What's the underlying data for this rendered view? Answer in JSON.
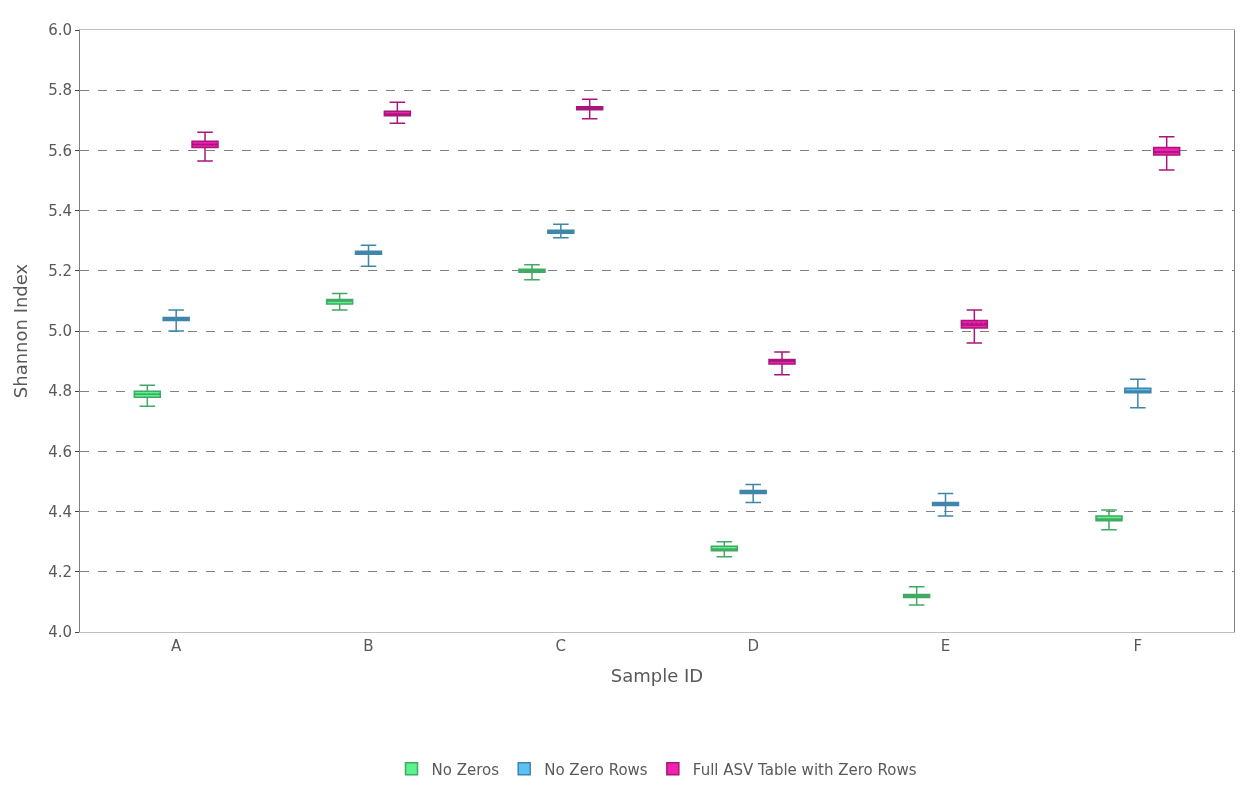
{
  "chart_data": {
    "type": "box",
    "xlabel": "Sample ID",
    "ylabel": "Shannon Index",
    "categories": [
      "A",
      "B",
      "C",
      "D",
      "E",
      "F"
    ],
    "ylim": [
      4.0,
      6.0
    ],
    "yticks": [
      {
        "value": 4.0,
        "label": "4.0"
      },
      {
        "value": 4.2,
        "label": "4.2"
      },
      {
        "value": 4.4,
        "label": "4.4"
      },
      {
        "value": 4.6,
        "label": "4.6"
      },
      {
        "value": 4.8,
        "label": "4.8"
      },
      {
        "value": 5.0,
        "label": "5.0"
      },
      {
        "value": 5.2,
        "label": "5.2"
      },
      {
        "value": 5.4,
        "label": "5.4"
      },
      {
        "value": 5.6,
        "label": "5.6"
      },
      {
        "value": 5.8,
        "label": "5.8"
      },
      {
        "value": 6.0,
        "label": "6.0"
      }
    ],
    "grid": "y",
    "legend": "bottom",
    "series": [
      {
        "name": "No Zeros",
        "color": "#5cf28e",
        "boxes": [
          {
            "low": 4.75,
            "q1": 4.78,
            "median": 4.79,
            "q3": 4.8,
            "high": 4.82,
            "mean": 4.79
          },
          {
            "low": 5.07,
            "q1": 5.09,
            "median": 5.1,
            "q3": 5.105,
            "high": 5.125,
            "mean": 5.1
          },
          {
            "low": 5.17,
            "q1": 5.195,
            "median": 5.2,
            "q3": 5.205,
            "high": 5.22,
            "mean": 5.2
          },
          {
            "low": 4.25,
            "q1": 4.27,
            "median": 4.275,
            "q3": 4.285,
            "high": 4.3,
            "mean": 4.275
          },
          {
            "low": 4.09,
            "q1": 4.115,
            "median": 4.12,
            "q3": 4.125,
            "high": 4.15,
            "mean": 4.12
          },
          {
            "low": 4.34,
            "q1": 4.37,
            "median": 4.375,
            "q3": 4.385,
            "high": 4.405,
            "mean": 4.375
          }
        ]
      },
      {
        "name": "No Zero Rows",
        "color": "#5bc0f5",
        "boxes": [
          {
            "low": 5.0,
            "q1": 5.035,
            "median": 5.04,
            "q3": 5.045,
            "high": 5.07,
            "mean": 5.04
          },
          {
            "low": 5.215,
            "q1": 5.255,
            "median": 5.26,
            "q3": 5.265,
            "high": 5.285,
            "mean": 5.26
          },
          {
            "low": 5.31,
            "q1": 5.325,
            "median": 5.33,
            "q3": 5.335,
            "high": 5.355,
            "mean": 5.33
          },
          {
            "low": 4.43,
            "q1": 4.46,
            "median": 4.465,
            "q3": 4.47,
            "high": 4.49,
            "mean": 4.465
          },
          {
            "low": 4.385,
            "q1": 4.42,
            "median": 4.425,
            "q3": 4.43,
            "high": 4.46,
            "mean": 4.425
          },
          {
            "low": 4.745,
            "q1": 4.795,
            "median": 4.8,
            "q3": 4.81,
            "high": 4.84,
            "mean": 4.8
          }
        ]
      },
      {
        "name": "Full ASV Table with Zero Rows",
        "color": "#f020b0",
        "boxes": [
          {
            "low": 5.565,
            "q1": 5.61,
            "median": 5.62,
            "q3": 5.63,
            "high": 5.66,
            "mean": 5.62
          },
          {
            "low": 5.69,
            "q1": 5.715,
            "median": 5.72,
            "q3": 5.73,
            "high": 5.76,
            "mean": 5.72
          },
          {
            "low": 5.705,
            "q1": 5.735,
            "median": 5.74,
            "q3": 5.745,
            "high": 5.77,
            "mean": 5.74
          },
          {
            "low": 4.855,
            "q1": 4.89,
            "median": 4.9,
            "q3": 4.905,
            "high": 4.93,
            "mean": 4.9
          },
          {
            "low": 4.96,
            "q1": 5.01,
            "median": 5.02,
            "q3": 5.035,
            "high": 5.07,
            "mean": 5.025
          },
          {
            "low": 5.535,
            "q1": 5.585,
            "median": 5.595,
            "q3": 5.61,
            "high": 5.645,
            "mean": 5.595
          }
        ]
      }
    ]
  }
}
